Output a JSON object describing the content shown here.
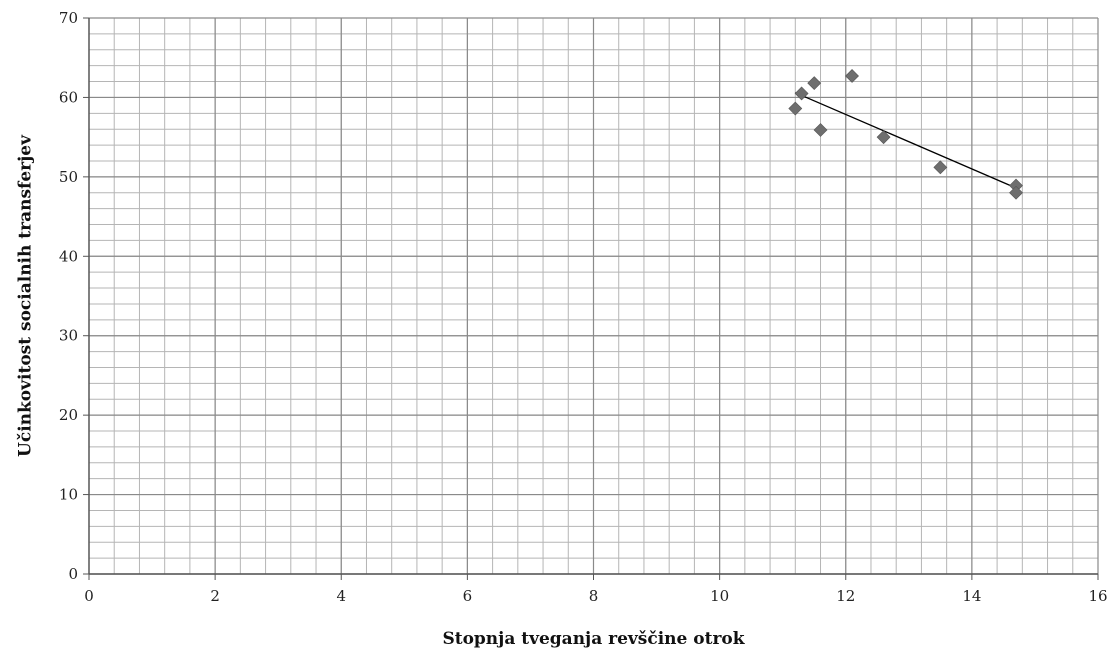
{
  "chart_data": {
    "type": "scatter",
    "title": "",
    "xlabel": "Stopnja tveganja revščine otrok",
    "ylabel": "Učinkovitost socialnih transferjev",
    "xlim": [
      0,
      16
    ],
    "ylim": [
      0,
      70
    ],
    "x_ticks": [
      0,
      2,
      4,
      6,
      8,
      10,
      12,
      14,
      16
    ],
    "y_ticks": [
      0,
      10,
      20,
      30,
      40,
      50,
      60,
      70
    ],
    "x_minor_step": 0.4,
    "y_minor_step": 2,
    "grid": true,
    "series": [
      {
        "marker": "diamond",
        "color": "#6e6e6e",
        "points": [
          {
            "x": 11.2,
            "y": 58.6
          },
          {
            "x": 11.3,
            "y": 60.5
          },
          {
            "x": 11.5,
            "y": 61.8
          },
          {
            "x": 11.6,
            "y": 55.9
          },
          {
            "x": 12.1,
            "y": 62.7
          },
          {
            "x": 12.6,
            "y": 55.0
          },
          {
            "x": 13.5,
            "y": 51.2
          },
          {
            "x": 14.7,
            "y": 48.9
          },
          {
            "x": 14.7,
            "y": 48.0
          }
        ]
      }
    ],
    "trendline": {
      "x1": 11.2,
      "y1": 60.6,
      "x2": 14.7,
      "y2": 48.6,
      "color": "#000000"
    },
    "colors": {
      "major_grid": "#8a8a8a",
      "minor_grid": "#b5b5b5",
      "marker": "#6e6e6e"
    }
  }
}
